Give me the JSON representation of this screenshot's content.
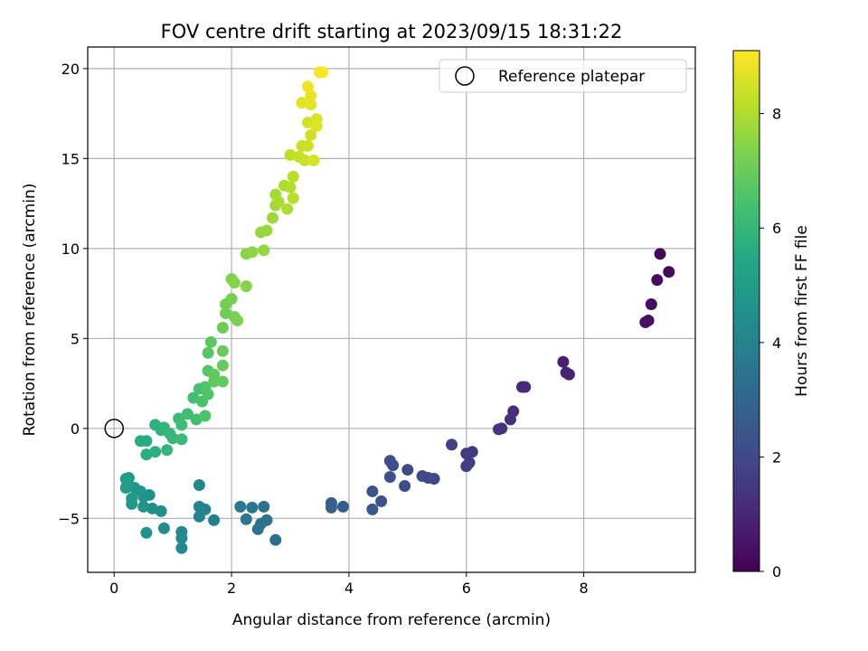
{
  "chart_data": {
    "type": "scatter",
    "title": "FOV centre drift starting at 2023/09/15 18:31:22",
    "xlabel": "Angular distance from reference (arcmin)",
    "ylabel": "Rotation from reference (arcmin)",
    "xlim": [
      -0.45,
      9.9
    ],
    "ylim": [
      -8,
      21.2
    ],
    "xticks": [
      0,
      2,
      4,
      6,
      8
    ],
    "yticks": [
      -5,
      0,
      5,
      10,
      15,
      20
    ],
    "grid": true,
    "legend": {
      "position": "top-right",
      "label": "Reference platepar"
    },
    "reference_point": {
      "x": 0,
      "y": 0
    },
    "colorbar": {
      "label": "Hours from first FF file",
      "min": 0,
      "max": 9.1,
      "ticks": [
        0,
        2,
        4,
        6,
        8
      ],
      "colormap": "viridis"
    },
    "points": [
      {
        "x": 9.3,
        "y": 9.7,
        "t": 0.15
      },
      {
        "x": 9.45,
        "y": 8.7,
        "t": 0.2
      },
      {
        "x": 9.25,
        "y": 8.25,
        "t": 0.25
      },
      {
        "x": 9.15,
        "y": 6.9,
        "t": 0.3
      },
      {
        "x": 9.1,
        "y": 6.0,
        "t": 0.35
      },
      {
        "x": 9.05,
        "y": 5.9,
        "t": 0.4
      },
      {
        "x": 7.65,
        "y": 3.7,
        "t": 0.8
      },
      {
        "x": 7.7,
        "y": 3.1,
        "t": 0.85
      },
      {
        "x": 7.75,
        "y": 3.0,
        "t": 0.9
      },
      {
        "x": 7.0,
        "y": 2.3,
        "t": 1.05
      },
      {
        "x": 6.95,
        "y": 2.3,
        "t": 1.1
      },
      {
        "x": 6.8,
        "y": 0.95,
        "t": 1.2
      },
      {
        "x": 6.75,
        "y": 0.5,
        "t": 1.25
      },
      {
        "x": 6.6,
        "y": 0.0,
        "t": 1.3
      },
      {
        "x": 6.55,
        "y": -0.05,
        "t": 1.35
      },
      {
        "x": 6.1,
        "y": -1.3,
        "t": 1.5
      },
      {
        "x": 6.0,
        "y": -1.4,
        "t": 1.55
      },
      {
        "x": 6.05,
        "y": -1.9,
        "t": 1.6
      },
      {
        "x": 6.0,
        "y": -2.1,
        "t": 1.65
      },
      {
        "x": 5.75,
        "y": -0.9,
        "t": 1.7
      },
      {
        "x": 5.45,
        "y": -2.8,
        "t": 1.9
      },
      {
        "x": 5.35,
        "y": -2.75,
        "t": 1.95
      },
      {
        "x": 5.25,
        "y": -2.65,
        "t": 2.0
      },
      {
        "x": 5.0,
        "y": -2.3,
        "t": 2.05
      },
      {
        "x": 4.95,
        "y": -3.2,
        "t": 2.1
      },
      {
        "x": 4.75,
        "y": -2.05,
        "t": 2.15
      },
      {
        "x": 4.7,
        "y": -1.8,
        "t": 2.2
      },
      {
        "x": 4.7,
        "y": -2.7,
        "t": 2.25
      },
      {
        "x": 4.55,
        "y": -4.05,
        "t": 2.35
      },
      {
        "x": 4.4,
        "y": -3.5,
        "t": 2.4
      },
      {
        "x": 4.4,
        "y": -4.5,
        "t": 2.45
      },
      {
        "x": 3.9,
        "y": -4.35,
        "t": 2.7
      },
      {
        "x": 3.7,
        "y": -4.15,
        "t": 2.75
      },
      {
        "x": 3.7,
        "y": -4.4,
        "t": 2.8
      },
      {
        "x": 2.75,
        "y": -6.2,
        "t": 3.3
      },
      {
        "x": 2.6,
        "y": -5.1,
        "t": 3.35
      },
      {
        "x": 2.55,
        "y": -4.35,
        "t": 3.4
      },
      {
        "x": 2.5,
        "y": -5.3,
        "t": 3.45
      },
      {
        "x": 2.45,
        "y": -5.6,
        "t": 3.5
      },
      {
        "x": 2.35,
        "y": -4.4,
        "t": 3.55
      },
      {
        "x": 2.25,
        "y": -5.05,
        "t": 3.6
      },
      {
        "x": 2.15,
        "y": -4.35,
        "t": 3.65
      },
      {
        "x": 1.7,
        "y": -5.1,
        "t": 3.9
      },
      {
        "x": 1.55,
        "y": -4.5,
        "t": 3.95
      },
      {
        "x": 1.45,
        "y": -4.35,
        "t": 4.0
      },
      {
        "x": 1.45,
        "y": -4.9,
        "t": 4.05
      },
      {
        "x": 1.45,
        "y": -3.15,
        "t": 4.1
      },
      {
        "x": 1.15,
        "y": -5.75,
        "t": 4.2
      },
      {
        "x": 1.15,
        "y": -6.1,
        "t": 4.25
      },
      {
        "x": 1.15,
        "y": -6.65,
        "t": 4.3
      },
      {
        "x": 0.85,
        "y": -5.55,
        "t": 4.4
      },
      {
        "x": 0.8,
        "y": -4.6,
        "t": 4.45
      },
      {
        "x": 0.65,
        "y": -4.45,
        "t": 4.5
      },
      {
        "x": 0.6,
        "y": -3.7,
        "t": 4.55
      },
      {
        "x": 0.55,
        "y": -5.8,
        "t": 4.6
      },
      {
        "x": 0.5,
        "y": -4.35,
        "t": 4.65
      },
      {
        "x": 0.5,
        "y": -3.8,
        "t": 4.7
      },
      {
        "x": 0.45,
        "y": -3.5,
        "t": 4.75
      },
      {
        "x": 0.35,
        "y": -3.3,
        "t": 4.8
      },
      {
        "x": 0.3,
        "y": -4.2,
        "t": 4.85
      },
      {
        "x": 0.3,
        "y": -3.9,
        "t": 4.9
      },
      {
        "x": 0.25,
        "y": -2.75,
        "t": 4.95
      },
      {
        "x": 0.2,
        "y": -2.8,
        "t": 5.0
      },
      {
        "x": 0.2,
        "y": -3.3,
        "t": 5.05
      },
      {
        "x": 0.45,
        "y": -0.7,
        "t": 5.6
      },
      {
        "x": 0.55,
        "y": -0.7,
        "t": 5.65
      },
      {
        "x": 0.55,
        "y": -1.45,
        "t": 5.7
      },
      {
        "x": 0.7,
        "y": -1.3,
        "t": 5.75
      },
      {
        "x": 0.7,
        "y": 0.2,
        "t": 5.8
      },
      {
        "x": 0.8,
        "y": -0.1,
        "t": 5.85
      },
      {
        "x": 0.85,
        "y": 0.05,
        "t": 5.9
      },
      {
        "x": 0.9,
        "y": -1.2,
        "t": 5.95
      },
      {
        "x": 0.95,
        "y": -0.3,
        "t": 6.0
      },
      {
        "x": 1.0,
        "y": -0.55,
        "t": 6.05
      },
      {
        "x": 1.1,
        "y": 0.55,
        "t": 6.1
      },
      {
        "x": 1.15,
        "y": -0.6,
        "t": 6.15
      },
      {
        "x": 1.15,
        "y": 0.2,
        "t": 6.2
      },
      {
        "x": 1.25,
        "y": 0.8,
        "t": 6.25
      },
      {
        "x": 1.35,
        "y": 1.7,
        "t": 6.3
      },
      {
        "x": 1.4,
        "y": 0.5,
        "t": 6.35
      },
      {
        "x": 1.45,
        "y": 2.2,
        "t": 6.4
      },
      {
        "x": 1.5,
        "y": 1.5,
        "t": 6.45
      },
      {
        "x": 1.55,
        "y": 0.7,
        "t": 6.5
      },
      {
        "x": 1.55,
        "y": 2.3,
        "t": 6.55
      },
      {
        "x": 1.6,
        "y": 1.9,
        "t": 6.6
      },
      {
        "x": 1.6,
        "y": 3.2,
        "t": 6.65
      },
      {
        "x": 1.6,
        "y": 4.2,
        "t": 6.7
      },
      {
        "x": 1.65,
        "y": 4.8,
        "t": 6.75
      },
      {
        "x": 1.7,
        "y": 3.0,
        "t": 6.8
      },
      {
        "x": 1.7,
        "y": 2.6,
        "t": 6.85
      },
      {
        "x": 1.85,
        "y": 2.6,
        "t": 6.9
      },
      {
        "x": 1.85,
        "y": 3.5,
        "t": 6.95
      },
      {
        "x": 1.85,
        "y": 4.3,
        "t": 7.0
      },
      {
        "x": 1.85,
        "y": 5.6,
        "t": 7.05
      },
      {
        "x": 1.9,
        "y": 6.4,
        "t": 7.1
      },
      {
        "x": 1.9,
        "y": 6.9,
        "t": 7.15
      },
      {
        "x": 2.0,
        "y": 7.2,
        "t": 7.2
      },
      {
        "x": 2.05,
        "y": 6.2,
        "t": 7.25
      },
      {
        "x": 2.1,
        "y": 6.0,
        "t": 7.3
      },
      {
        "x": 2.0,
        "y": 8.3,
        "t": 7.35
      },
      {
        "x": 2.05,
        "y": 8.1,
        "t": 7.4
      },
      {
        "x": 2.25,
        "y": 7.9,
        "t": 7.45
      },
      {
        "x": 2.25,
        "y": 9.7,
        "t": 7.5
      },
      {
        "x": 2.35,
        "y": 9.8,
        "t": 7.55
      },
      {
        "x": 2.55,
        "y": 9.9,
        "t": 7.6
      },
      {
        "x": 2.5,
        "y": 10.9,
        "t": 7.65
      },
      {
        "x": 2.6,
        "y": 11.0,
        "t": 7.7
      },
      {
        "x": 2.7,
        "y": 11.7,
        "t": 7.75
      },
      {
        "x": 2.75,
        "y": 12.4,
        "t": 7.8
      },
      {
        "x": 2.75,
        "y": 13.0,
        "t": 7.85
      },
      {
        "x": 2.8,
        "y": 12.6,
        "t": 7.9
      },
      {
        "x": 2.9,
        "y": 13.5,
        "t": 7.95
      },
      {
        "x": 2.95,
        "y": 12.2,
        "t": 8.0
      },
      {
        "x": 3.0,
        "y": 13.4,
        "t": 8.05
      },
      {
        "x": 3.05,
        "y": 12.8,
        "t": 8.1
      },
      {
        "x": 3.05,
        "y": 14.0,
        "t": 8.15
      },
      {
        "x": 3.0,
        "y": 15.2,
        "t": 8.2
      },
      {
        "x": 3.15,
        "y": 15.1,
        "t": 8.25
      },
      {
        "x": 3.2,
        "y": 15.7,
        "t": 8.3
      },
      {
        "x": 3.25,
        "y": 14.9,
        "t": 8.35
      },
      {
        "x": 3.3,
        "y": 15.7,
        "t": 8.4
      },
      {
        "x": 3.35,
        "y": 16.3,
        "t": 8.45
      },
      {
        "x": 3.3,
        "y": 17.0,
        "t": 8.5
      },
      {
        "x": 3.4,
        "y": 14.9,
        "t": 8.55
      },
      {
        "x": 3.45,
        "y": 17.2,
        "t": 8.6
      },
      {
        "x": 3.45,
        "y": 16.8,
        "t": 8.65
      },
      {
        "x": 3.2,
        "y": 18.1,
        "t": 8.7
      },
      {
        "x": 3.35,
        "y": 18.0,
        "t": 8.75
      },
      {
        "x": 3.35,
        "y": 18.5,
        "t": 8.8
      },
      {
        "x": 3.3,
        "y": 19.0,
        "t": 8.85
      },
      {
        "x": 3.5,
        "y": 19.8,
        "t": 8.95
      },
      {
        "x": 3.55,
        "y": 19.8,
        "t": 9.0
      }
    ]
  }
}
